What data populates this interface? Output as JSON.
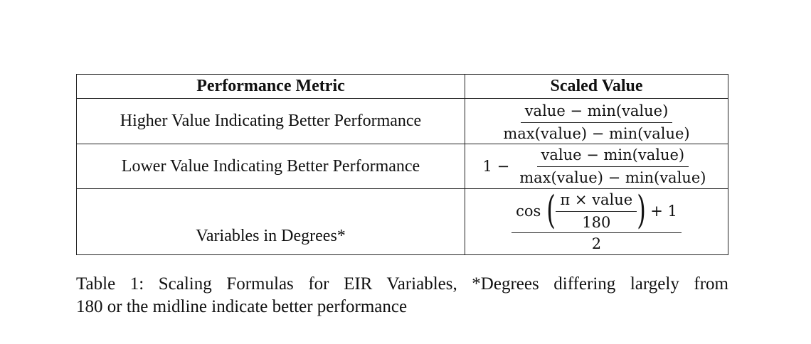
{
  "table": {
    "headers": [
      "Performance Metric",
      "Scaled Value"
    ],
    "rows": [
      {
        "metric": "Higher Value Indicating Better Performance",
        "formula": {
          "numerator": "value − min(value)",
          "denominator": "max(value) − min(value)"
        }
      },
      {
        "metric": "Lower Value Indicating Better Performance",
        "formula": {
          "prefix": "1 −",
          "numerator": "value − min(value)",
          "denominator": "max(value) − min(value)"
        }
      },
      {
        "metric": "Variables in Degrees*",
        "formula": {
          "cos": "cos",
          "inner_numerator": "π × value",
          "inner_denominator": "180",
          "plus": "+ 1",
          "denominator": "2"
        }
      }
    ]
  },
  "caption": {
    "line1": "Table 1: Scaling Formulas for EIR Variables, *Degrees differing largely from",
    "line2": "180 or the midline indicate better performance"
  }
}
